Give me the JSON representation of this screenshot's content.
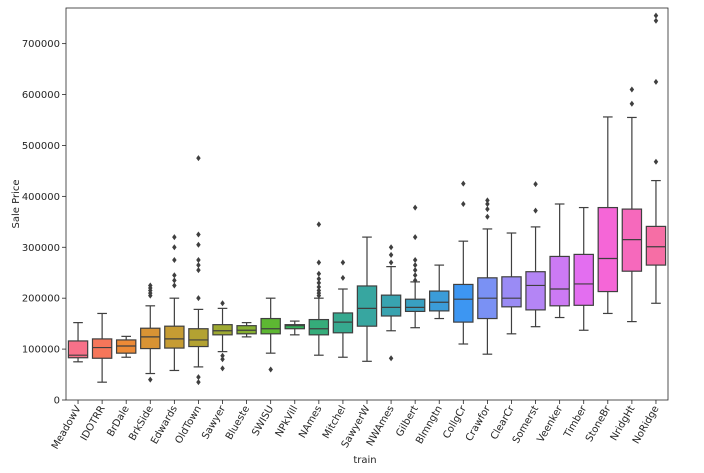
{
  "chart_data": {
    "type": "box",
    "xlabel": "train",
    "ylabel": "Sale Price",
    "ylim": [
      0,
      770000
    ],
    "y_ticks": [
      0,
      100000,
      200000,
      300000,
      400000,
      500000,
      600000,
      700000
    ],
    "grid": false,
    "categories": [
      {
        "name": "MeadowV",
        "color": "#f77189",
        "q1": 83000,
        "median": 88000,
        "q3": 116000,
        "whisker_low": 75000,
        "whisker_high": 152000,
        "outliers": []
      },
      {
        "name": "IDOTRR",
        "color": "#f6765a",
        "q1": 82000,
        "median": 103000,
        "q3": 120000,
        "whisker_low": 35000,
        "whisker_high": 170000,
        "outliers": []
      },
      {
        "name": "BrDale",
        "color": "#ec8a36",
        "q1": 92000,
        "median": 106000,
        "q3": 118000,
        "whisker_low": 84000,
        "whisker_high": 125000,
        "outliers": []
      },
      {
        "name": "BrkSide",
        "color": "#d89334",
        "q1": 101000,
        "median": 124000,
        "q3": 141000,
        "whisker_low": 52000,
        "whisker_high": 185000,
        "outliers": [
          40000,
          205000,
          210000,
          215000,
          220000,
          225000
        ]
      },
      {
        "name": "Edwards",
        "color": "#c69c33",
        "q1": 102000,
        "median": 120000,
        "q3": 145000,
        "whisker_low": 58000,
        "whisker_high": 200000,
        "outliers": [
          225000,
          235000,
          245000,
          275000,
          300000,
          320000
        ]
      },
      {
        "name": "OldTown",
        "color": "#b3a232",
        "q1": 105000,
        "median": 118000,
        "q3": 140000,
        "whisker_low": 65000,
        "whisker_high": 178000,
        "outliers": [
          35000,
          45000,
          200000,
          255000,
          265000,
          275000,
          305000,
          325000,
          475000
        ]
      },
      {
        "name": "Sawyer",
        "color": "#9ea931",
        "q1": 128000,
        "median": 136000,
        "q3": 148000,
        "whisker_low": 95000,
        "whisker_high": 180000,
        "outliers": [
          62000,
          80000,
          87000,
          190000
        ]
      },
      {
        "name": "Blueste",
        "color": "#86b031",
        "q1": 130000,
        "median": 137000,
        "q3": 146000,
        "whisker_low": 124000,
        "whisker_high": 152000,
        "outliers": []
      },
      {
        "name": "SWISU",
        "color": "#5db732",
        "q1": 130000,
        "median": 140000,
        "q3": 160000,
        "whisker_low": 92000,
        "whisker_high": 200000,
        "outliers": [
          60000
        ]
      },
      {
        "name": "NPkVill",
        "color": "#34b05a",
        "q1": 140000,
        "median": 146000,
        "q3": 148000,
        "whisker_low": 128000,
        "whisker_high": 155000,
        "outliers": []
      },
      {
        "name": "NAmes",
        "color": "#35ac7a",
        "q1": 128000,
        "median": 140000,
        "q3": 158000,
        "whisker_low": 88000,
        "whisker_high": 200000,
        "outliers": [
          205000,
          210000,
          215000,
          222000,
          230000,
          238000,
          248000,
          270000,
          345000
        ]
      },
      {
        "name": "Mitchel",
        "color": "#36a98f",
        "q1": 132000,
        "median": 153000,
        "q3": 171000,
        "whisker_low": 84000,
        "whisker_high": 218000,
        "outliers": [
          240000,
          270000
        ]
      },
      {
        "name": "SawyerW",
        "color": "#37a6a0",
        "q1": 145000,
        "median": 180000,
        "q3": 224000,
        "whisker_low": 76000,
        "whisker_high": 320000,
        "outliers": []
      },
      {
        "name": "NWAmes",
        "color": "#38a3b0",
        "q1": 165000,
        "median": 182000,
        "q3": 206000,
        "whisker_low": 136000,
        "whisker_high": 262000,
        "outliers": [
          82000,
          270000,
          285000,
          300000
        ]
      },
      {
        "name": "Gilbert",
        "color": "#39a0c2",
        "q1": 174000,
        "median": 182000,
        "q3": 198000,
        "whisker_low": 142000,
        "whisker_high": 232000,
        "outliers": [
          235000,
          245000,
          255000,
          265000,
          275000,
          320000,
          378000
        ]
      },
      {
        "name": "Blmngtn",
        "color": "#3b9cd9",
        "q1": 175000,
        "median": 192000,
        "q3": 214000,
        "whisker_low": 160000,
        "whisker_high": 265000,
        "outliers": []
      },
      {
        "name": "CollgCr",
        "color": "#3d96f2",
        "q1": 153000,
        "median": 198000,
        "q3": 227000,
        "whisker_low": 110000,
        "whisker_high": 312000,
        "outliers": [
          385000,
          425000
        ]
      },
      {
        "name": "Crawfor",
        "color": "#7a91f4",
        "q1": 160000,
        "median": 200000,
        "q3": 240000,
        "whisker_low": 90000,
        "whisker_high": 336000,
        "outliers": [
          360000,
          375000,
          385000,
          392000
        ]
      },
      {
        "name": "ClearCr",
        "color": "#9a8bf5",
        "q1": 183000,
        "median": 200000,
        "q3": 242000,
        "whisker_low": 130000,
        "whisker_high": 328000,
        "outliers": []
      },
      {
        "name": "Somerst",
        "color": "#b485f5",
        "q1": 177000,
        "median": 225000,
        "q3": 252000,
        "whisker_low": 144000,
        "whisker_high": 340000,
        "outliers": [
          372000,
          424000
        ]
      },
      {
        "name": "Veenker",
        "color": "#cc7af4",
        "q1": 185000,
        "median": 218000,
        "q3": 282000,
        "whisker_low": 162000,
        "whisker_high": 385000,
        "outliers": []
      },
      {
        "name": "Timber",
        "color": "#e36ef0",
        "q1": 186000,
        "median": 228000,
        "q3": 286000,
        "whisker_low": 137000,
        "whisker_high": 378000,
        "outliers": []
      },
      {
        "name": "StoneBr",
        "color": "#f566d7",
        "q1": 213000,
        "median": 278000,
        "q3": 378000,
        "whisker_low": 170000,
        "whisker_high": 556000,
        "outliers": []
      },
      {
        "name": "NridgHt",
        "color": "#f669bc",
        "q1": 253000,
        "median": 315000,
        "q3": 375000,
        "whisker_low": 154000,
        "whisker_high": 555000,
        "outliers": [
          582000,
          610000
        ]
      },
      {
        "name": "NoRidge",
        "color": "#f66ea5",
        "q1": 265000,
        "median": 301000,
        "q3": 341000,
        "whisker_low": 190000,
        "whisker_high": 431000,
        "outliers": [
          468000,
          625000,
          745000,
          755000
        ]
      }
    ]
  }
}
